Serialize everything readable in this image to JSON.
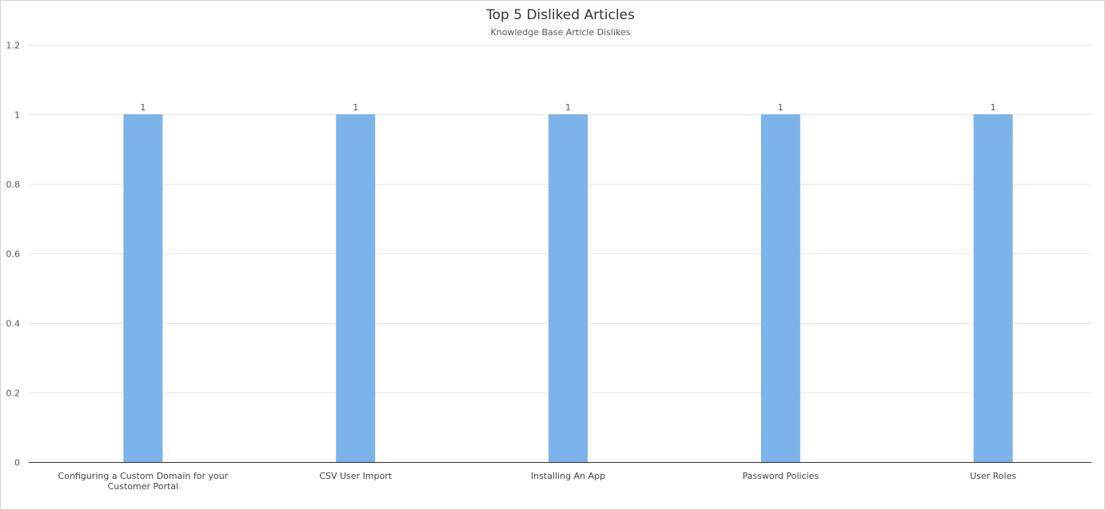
{
  "chart_data": {
    "type": "bar",
    "title": "Top 5 Disliked Articles",
    "subtitle": "Knowledge Base Article Dislikes",
    "categories": [
      [
        "Configuring a Custom Domain for your",
        "Customer Portal"
      ],
      [
        "CSV User Import"
      ],
      [
        "Installing An App"
      ],
      [
        "Password Policies"
      ],
      [
        "User Roles"
      ]
    ],
    "values": [
      1,
      1,
      1,
      1,
      1
    ],
    "data_labels": [
      "1",
      "1",
      "1",
      "1",
      "1"
    ],
    "ylim": [
      0,
      1.2
    ],
    "yticks": [
      "0",
      "0.2",
      "0.4",
      "0.6",
      "0.8",
      "1",
      "1.2"
    ],
    "ytick_values": [
      0,
      0.2,
      0.4,
      0.6,
      0.8,
      1,
      1.2
    ],
    "xlabel": "",
    "ylabel": "",
    "grid": true,
    "legend": false,
    "bar_color": "#7cb3ea",
    "grid_color": "#e6e6e6",
    "axis_color": "#333333"
  }
}
